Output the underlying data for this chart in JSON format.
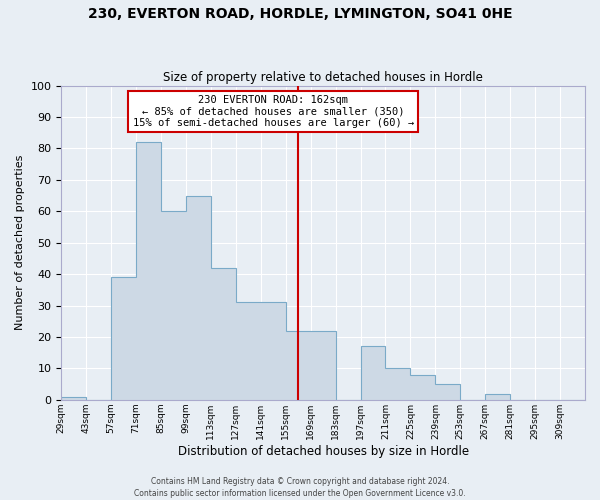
{
  "title": "230, EVERTON ROAD, HORDLE, LYMINGTON, SO41 0HE",
  "subtitle": "Size of property relative to detached houses in Hordle",
  "xlabel": "Distribution of detached houses by size in Hordle",
  "ylabel": "Number of detached properties",
  "footer_line1": "Contains HM Land Registry data © Crown copyright and database right 2024.",
  "footer_line2": "Contains public sector information licensed under the Open Government Licence v3.0.",
  "bin_labels": [
    "29sqm",
    "43sqm",
    "57sqm",
    "71sqm",
    "85sqm",
    "99sqm",
    "113sqm",
    "127sqm",
    "141sqm",
    "155sqm",
    "169sqm",
    "183sqm",
    "197sqm",
    "211sqm",
    "225sqm",
    "239sqm",
    "253sqm",
    "267sqm",
    "281sqm",
    "295sqm",
    "309sqm"
  ],
  "bin_edges": [
    29,
    43,
    57,
    71,
    85,
    99,
    113,
    127,
    141,
    155,
    169,
    183,
    197,
    211,
    225,
    239,
    253,
    267,
    281,
    295,
    309
  ],
  "bar_heights": [
    1,
    0,
    39,
    82,
    60,
    65,
    42,
    31,
    31,
    22,
    22,
    0,
    17,
    10,
    8,
    5,
    0,
    2,
    0,
    0,
    0
  ],
  "bar_color": "#cdd9e5",
  "bar_edge_color": "#7aaac8",
  "property_size": 162,
  "vline_color": "#cc0000",
  "annotation_text_line1": "230 EVERTON ROAD: 162sqm",
  "annotation_text_line2": "← 85% of detached houses are smaller (350)",
  "annotation_text_line3": "15% of semi-detached houses are larger (60) →",
  "annotation_box_color": "#cc0000",
  "ylim": [
    0,
    100
  ],
  "background_color": "#e8eef4",
  "plot_bg_color": "#e8eef4",
  "fig_bg_color": "#e8eef4"
}
